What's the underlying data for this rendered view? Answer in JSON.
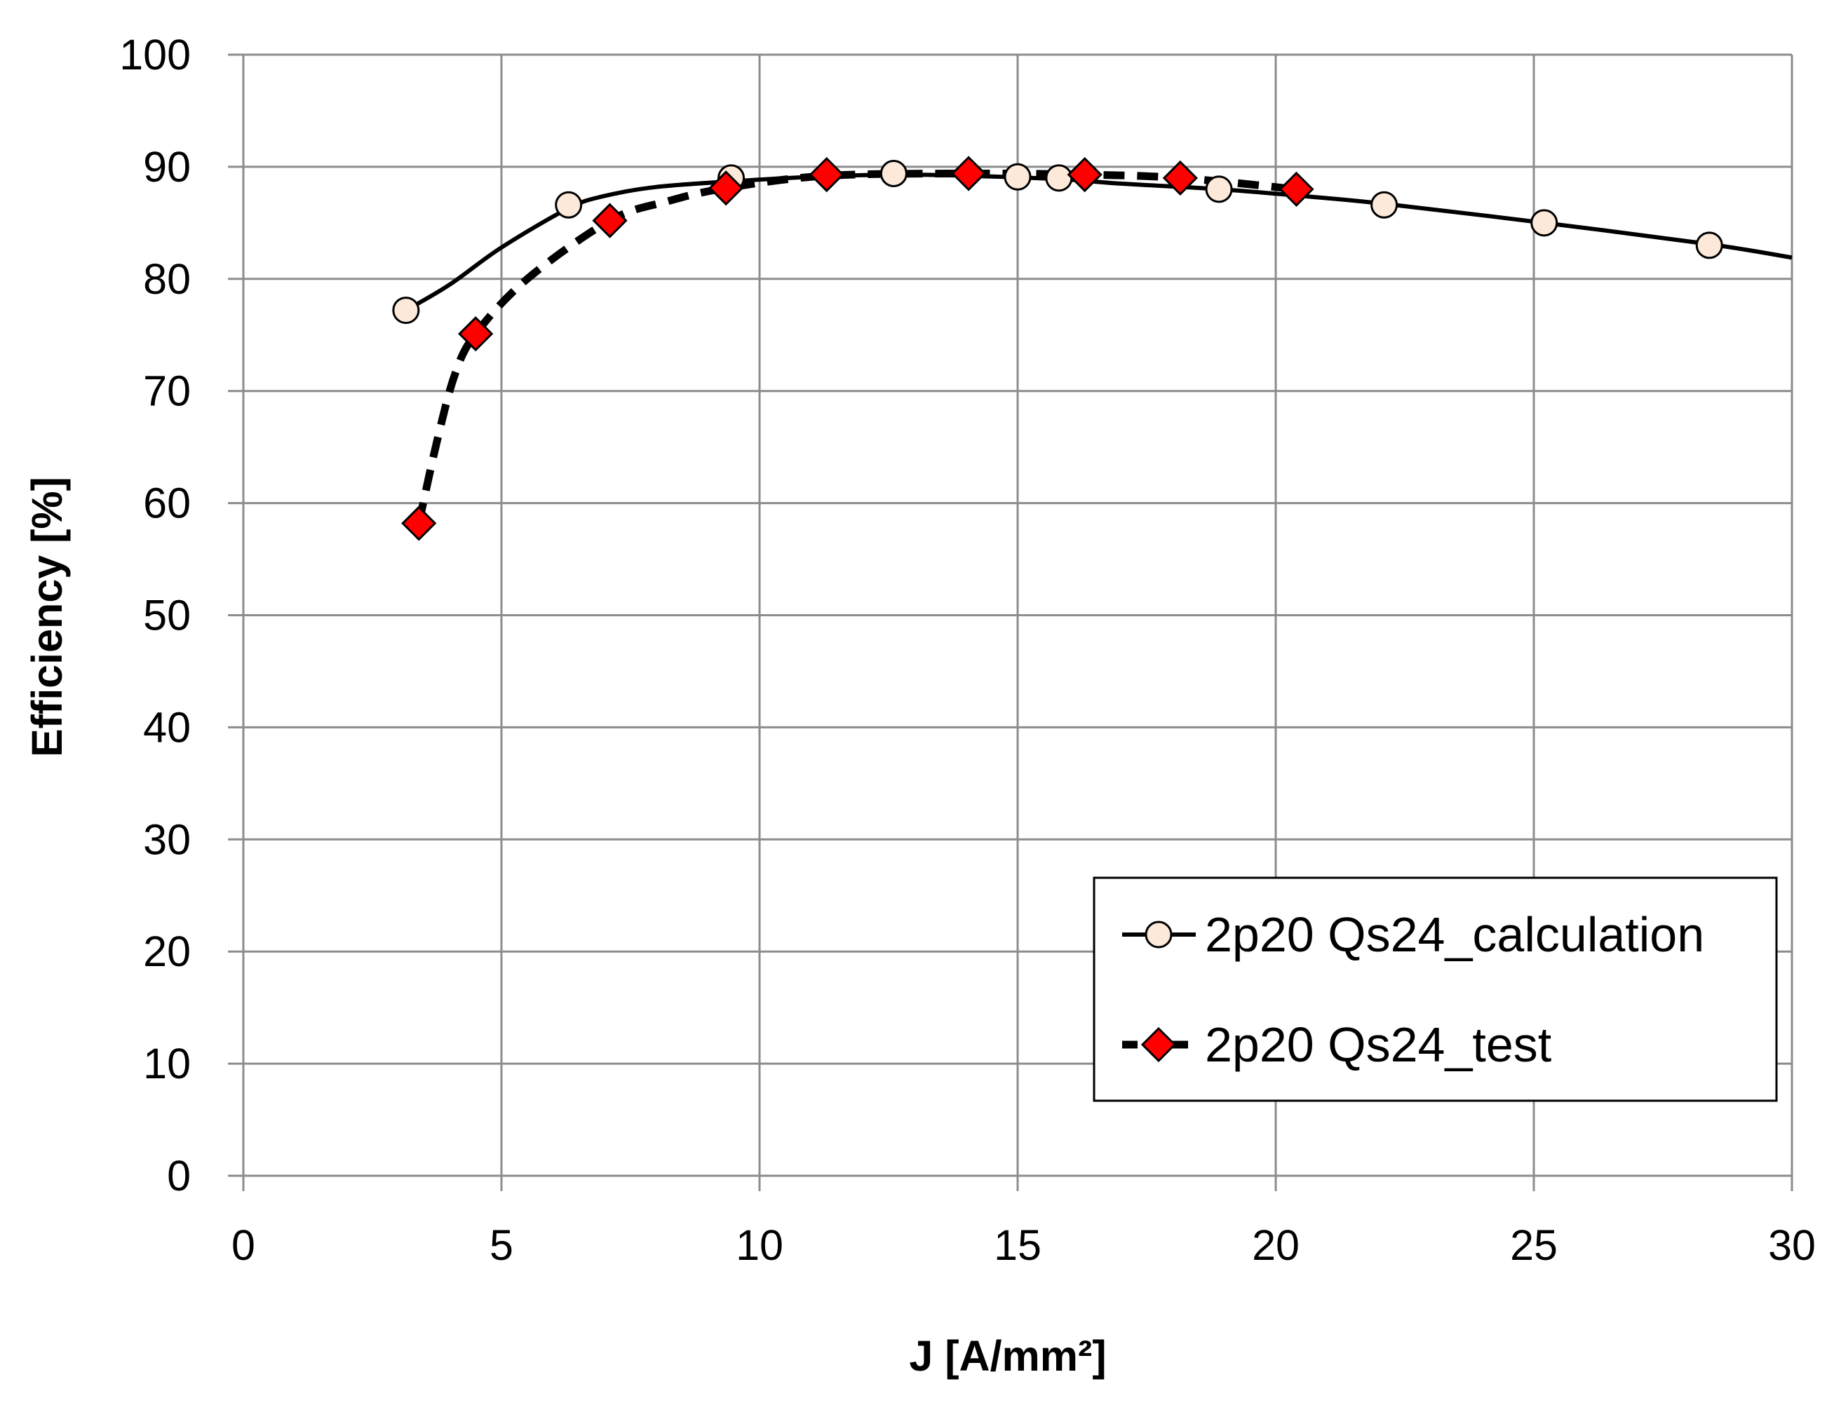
{
  "chart_data": {
    "type": "line",
    "title": "",
    "xlabel": "J [A/mm²]",
    "ylabel": "Efficiency [%]",
    "xlim": [
      0,
      30
    ],
    "ylim": [
      0,
      100
    ],
    "x_ticks": [
      "0",
      "5",
      "10",
      "15",
      "20",
      "25",
      "30"
    ],
    "y_ticks": [
      "0",
      "10",
      "20",
      "30",
      "40",
      "50",
      "60",
      "70",
      "80",
      "90",
      "100"
    ],
    "grid": true,
    "legend_position": "bottom-right",
    "series": [
      {
        "name": "2p20 Qs24_calculation",
        "line_style": "solid",
        "marker": "circle",
        "marker_color": "#fce9d9",
        "line_color": "#000000",
        "x": [
          3.15,
          6.3,
          9.45,
          12.6,
          15.0,
          15.8,
          18.9,
          22.1,
          25.2,
          28.4
        ],
        "y": [
          77.2,
          86.6,
          89.0,
          89.4,
          89.1,
          89.0,
          88.0,
          86.6,
          85.0,
          83.0
        ],
        "curve_x": [
          3.15,
          4.0,
          5.0,
          6.3,
          7.0,
          8.0,
          9.45,
          11.0,
          12.6,
          14.0,
          15.8,
          17.0,
          18.9,
          20.5,
          22.1,
          25.2,
          28.4,
          30.0
        ],
        "curve_y": [
          77.2,
          79.5,
          82.8,
          86.3,
          87.4,
          88.2,
          88.7,
          89.1,
          89.3,
          89.2,
          88.9,
          88.5,
          88.0,
          87.4,
          86.7,
          85.0,
          83.1,
          81.9
        ]
      },
      {
        "name": "2p20 Qs24_test",
        "line_style": "dashed",
        "marker": "diamond",
        "marker_color": "#ff0000",
        "line_color": "#000000",
        "x": [
          3.4,
          4.5,
          7.1,
          9.35,
          11.3,
          14.05,
          16.3,
          18.15,
          20.4
        ],
        "y": [
          58.2,
          75.1,
          85.2,
          88.1,
          89.3,
          89.4,
          89.3,
          89.0,
          88.0
        ],
        "curve_x": [
          3.4,
          3.75,
          4.1,
          4.5,
          5.5,
          7.1,
          8.2,
          9.35,
          11.3,
          14.05,
          16.3,
          18.15,
          20.4
        ],
        "curve_y": [
          58.2,
          65.5,
          71.5,
          75.1,
          80.0,
          85.2,
          86.9,
          88.1,
          89.2,
          89.4,
          89.3,
          89.0,
          88.0
        ]
      }
    ]
  },
  "colors": {
    "grid": "#8c8c8c",
    "axis": "#8c8c8c",
    "background": "#ffffff"
  }
}
